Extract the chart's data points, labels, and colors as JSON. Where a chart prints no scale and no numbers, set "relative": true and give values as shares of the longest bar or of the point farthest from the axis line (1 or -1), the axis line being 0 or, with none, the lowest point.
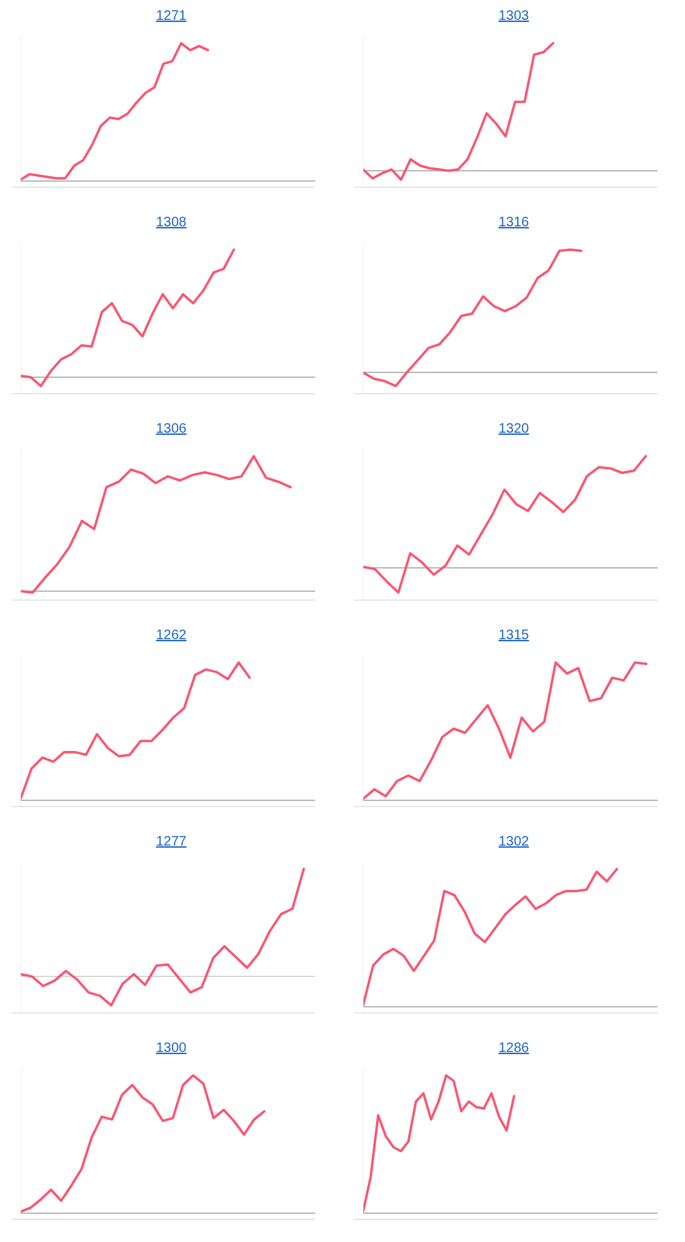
{
  "chart_data": [
    {
      "type": "line",
      "title": "1271",
      "color": "#fa5570",
      "relative": true,
      "categories": [
        null,
        null,
        null,
        null,
        null,
        null,
        null,
        null,
        null,
        null,
        null,
        null,
        null,
        null,
        null,
        null,
        null,
        null,
        null,
        null,
        null,
        null,
        null,
        null,
        null,
        null,
        null,
        null,
        null,
        null,
        null,
        null,
        null,
        null
      ],
      "values": [
        0.01,
        0.05,
        0.04,
        0.03,
        0.02,
        0.02,
        0.11,
        0.15,
        0.26,
        0.4,
        0.46,
        0.45,
        0.49,
        0.57,
        0.64,
        0.68,
        0.85,
        0.87,
        1,
        0.95,
        0.98,
        0.95,
        null,
        null,
        null,
        null,
        null,
        null,
        null,
        null,
        null,
        null,
        null,
        null
      ]
    },
    {
      "type": "line",
      "title": "1303",
      "color": "#fa5570",
      "relative": true,
      "categories": [
        null,
        null,
        null,
        null,
        null,
        null,
        null,
        null,
        null,
        null,
        null,
        null,
        null,
        null,
        null,
        null,
        null,
        null,
        null,
        null,
        null,
        null,
        null,
        null,
        null,
        null,
        null,
        null,
        null,
        null,
        null,
        null
      ],
      "values": [
        0.01,
        -0.06,
        -0.02,
        0.01,
        -0.07,
        0.09,
        0.04,
        0.02,
        0.01,
        0,
        0.01,
        0.09,
        0.26,
        0.45,
        0.37,
        0.27,
        0.54,
        0.54,
        0.91,
        0.93,
        1,
        null,
        null,
        null,
        null,
        null,
        null,
        null,
        null,
        null,
        null,
        null
      ]
    },
    {
      "type": "line",
      "title": "1308",
      "color": "#fa5570",
      "relative": true,
      "categories": [
        null,
        null,
        null,
        null,
        null,
        null,
        null,
        null,
        null,
        null,
        null,
        null,
        null,
        null,
        null,
        null,
        null,
        null,
        null,
        null,
        null,
        null,
        null,
        null,
        null,
        null,
        null,
        null,
        null,
        null
      ],
      "values": [
        0.01,
        0,
        -0.07,
        0.05,
        0.14,
        0.18,
        0.25,
        0.24,
        0.51,
        0.58,
        0.44,
        0.41,
        0.32,
        0.5,
        0.65,
        0.54,
        0.65,
        0.58,
        0.68,
        0.82,
        0.85,
        1,
        null,
        null,
        null,
        null,
        null,
        null,
        null,
        null
      ]
    },
    {
      "type": "line",
      "title": "1316",
      "color": "#fa5570",
      "relative": true,
      "categories": [
        null,
        null,
        null,
        null,
        null,
        null,
        null,
        null,
        null,
        null,
        null,
        null,
        null,
        null,
        null,
        null,
        null,
        null,
        null,
        null,
        null,
        null,
        null,
        null,
        null,
        null,
        null,
        null
      ],
      "values": [
        0,
        -0.05,
        -0.07,
        -0.11,
        0,
        0.1,
        0.2,
        0.23,
        0.33,
        0.46,
        0.48,
        0.62,
        0.54,
        0.5,
        0.54,
        0.61,
        0.77,
        0.83,
        0.99,
        1,
        0.99,
        null,
        null,
        null,
        null,
        null,
        null,
        null
      ]
    },
    {
      "type": "line",
      "title": "1306",
      "color": "#fa5570",
      "relative": true,
      "categories": [
        null,
        null,
        null,
        null,
        null,
        null,
        null,
        null,
        null,
        null,
        null,
        null,
        null,
        null,
        null,
        null,
        null,
        null,
        null,
        null,
        null,
        null,
        null,
        null,
        null
      ],
      "values": [
        0,
        -0.01,
        0.1,
        0.2,
        0.33,
        0.52,
        0.46,
        0.77,
        0.81,
        0.9,
        0.87,
        0.8,
        0.85,
        0.82,
        0.86,
        0.88,
        0.86,
        0.83,
        0.85,
        1,
        0.84,
        0.81,
        0.77,
        null,
        null
      ]
    },
    {
      "type": "line",
      "title": "1320",
      "color": "#fa5570",
      "relative": true,
      "categories": [
        null,
        null,
        null,
        null,
        null,
        null,
        null,
        null,
        null,
        null,
        null,
        null,
        null,
        null,
        null,
        null,
        null,
        null,
        null,
        null,
        null,
        null,
        null,
        null,
        null,
        null
      ],
      "values": [
        0.01,
        -0.01,
        -0.12,
        -0.22,
        0.13,
        0.05,
        -0.06,
        0.02,
        0.2,
        0.12,
        0.3,
        0.48,
        0.7,
        0.57,
        0.51,
        0.67,
        0.59,
        0.5,
        0.61,
        0.82,
        0.9,
        0.89,
        0.85,
        0.87,
        1,
        null
      ]
    },
    {
      "type": "line",
      "title": "1262",
      "color": "#fa5570",
      "relative": true,
      "categories": [
        null,
        null,
        null,
        null,
        null,
        null,
        null,
        null,
        null,
        null,
        null,
        null,
        null,
        null,
        null,
        null,
        null,
        null,
        null,
        null,
        null,
        null,
        null,
        null,
        null,
        null,
        null,
        null
      ],
      "values": [
        0.01,
        0.23,
        0.31,
        0.28,
        0.35,
        0.35,
        0.33,
        0.48,
        0.38,
        0.32,
        0.33,
        0.43,
        0.43,
        0.51,
        0.6,
        0.67,
        0.91,
        0.95,
        0.93,
        0.88,
        1,
        0.89,
        null,
        null,
        null,
        null,
        null,
        null
      ]
    },
    {
      "type": "line",
      "title": "1315",
      "color": "#fa5570",
      "relative": true,
      "categories": [
        null,
        null,
        null,
        null,
        null,
        null,
        null,
        null,
        null,
        null,
        null,
        null,
        null,
        null,
        null,
        null,
        null,
        null,
        null,
        null,
        null,
        null,
        null,
        null,
        null,
        null,
        null
      ],
      "values": [
        0.01,
        0.08,
        0.03,
        0.14,
        0.18,
        0.14,
        0.29,
        0.46,
        0.52,
        0.49,
        0.59,
        0.69,
        0.52,
        0.31,
        0.6,
        0.5,
        0.57,
        1,
        0.92,
        0.96,
        0.72,
        0.74,
        0.89,
        0.87,
        1,
        0.99,
        null
      ]
    },
    {
      "type": "line",
      "title": "1277",
      "color": "#fa5570",
      "relative": true,
      "categories": [
        null,
        null,
        null,
        null,
        null,
        null,
        null,
        null,
        null,
        null,
        null,
        null,
        null,
        null,
        null,
        null,
        null,
        null,
        null,
        null,
        null,
        null,
        null,
        null,
        null,
        null,
        null
      ],
      "values": [
        0.02,
        0,
        -0.09,
        -0.04,
        0.05,
        -0.03,
        -0.15,
        -0.18,
        -0.27,
        -0.07,
        0.02,
        -0.08,
        0.1,
        0.11,
        -0.02,
        -0.15,
        -0.1,
        0.17,
        0.28,
        0.18,
        0.08,
        0.21,
        0.42,
        0.58,
        0.63,
        1,
        null
      ]
    },
    {
      "type": "line",
      "title": "1302",
      "color": "#fa5570",
      "relative": true,
      "categories": [
        null,
        null,
        null,
        null,
        null,
        null,
        null,
        null,
        null,
        null,
        null,
        null,
        null,
        null,
        null,
        null,
        null,
        null,
        null,
        null,
        null,
        null,
        null,
        null,
        null,
        null,
        null,
        null,
        null,
        null
      ],
      "values": [
        0.01,
        0.3,
        0.38,
        0.42,
        0.37,
        0.26,
        0.37,
        0.48,
        0.84,
        0.81,
        0.69,
        0.53,
        0.47,
        0.57,
        0.67,
        0.74,
        0.8,
        0.71,
        0.75,
        0.81,
        0.84,
        0.84,
        0.85,
        0.98,
        0.91,
        1,
        null,
        null,
        null,
        null
      ]
    },
    {
      "type": "line",
      "title": "1300",
      "color": "#fa5570",
      "relative": true,
      "categories": [
        null,
        null,
        null,
        null,
        null,
        null,
        null,
        null,
        null,
        null,
        null,
        null,
        null,
        null,
        null,
        null,
        null,
        null,
        null,
        null,
        null,
        null,
        null,
        null,
        null,
        null,
        null,
        null,
        null,
        null
      ],
      "values": [
        0.01,
        0.04,
        0.1,
        0.17,
        0.09,
        0.2,
        0.32,
        0.55,
        0.7,
        0.68,
        0.86,
        0.93,
        0.84,
        0.79,
        0.67,
        0.69,
        0.93,
        1,
        0.94,
        0.69,
        0.75,
        0.67,
        0.57,
        0.68,
        0.74,
        null,
        null,
        null,
        null,
        null
      ]
    },
    {
      "type": "line",
      "title": "1286",
      "color": "#fa5570",
      "relative": true,
      "categories": [
        null,
        null,
        null,
        null,
        null,
        null,
        null,
        null,
        null,
        null,
        null,
        null,
        null,
        null,
        null,
        null,
        null,
        null,
        null,
        null,
        null,
        null,
        null,
        null,
        null,
        null,
        null,
        null,
        null,
        null,
        null,
        null,
        null,
        null,
        null,
        null,
        null,
        null,
        null,
        null
      ],
      "values": [
        0.01,
        0.26,
        0.71,
        0.56,
        0.48,
        0.45,
        0.52,
        0.81,
        0.87,
        0.68,
        0.81,
        1,
        0.96,
        0.74,
        0.81,
        0.77,
        0.76,
        0.87,
        0.7,
        0.6,
        0.85,
        null,
        null,
        null,
        null,
        null,
        null,
        null,
        null,
        null,
        null,
        null,
        null,
        null,
        null,
        null,
        null,
        null,
        null,
        null
      ]
    }
  ]
}
